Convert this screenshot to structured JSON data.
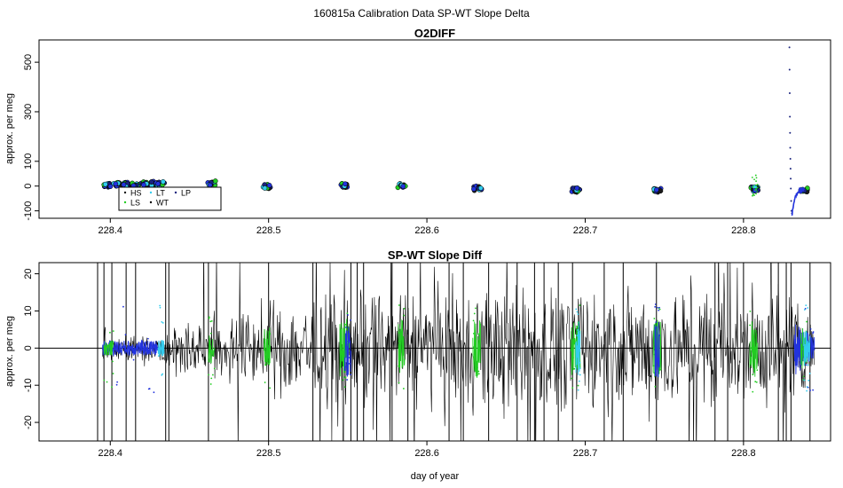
{
  "figure_title": "160815a   Calibration Data SP-WT Slope Delta",
  "colors": {
    "HS": "#1a1a1a",
    "LS": "#22cc22",
    "LT": "#33ccee",
    "WT": "#000000",
    "LP": "#1a237e",
    "blue": "#2233dd"
  },
  "chart_data": [
    {
      "type": "scatter",
      "title": "O2DIFF",
      "xlabel": "",
      "ylabel": "approx. per meg",
      "xlim": [
        228.355,
        228.855
      ],
      "ylim": [
        -130,
        590
      ],
      "xticks": [
        228.4,
        228.5,
        228.6,
        228.7,
        228.8
      ],
      "xtick_labels": [
        "228.4",
        "228.5",
        "228.6",
        "228.7",
        "228.8"
      ],
      "yticks": [
        -100,
        0,
        100,
        300,
        500
      ],
      "ytick_labels": [
        "-100",
        "0",
        "100",
        "300",
        "500"
      ],
      "grid": false,
      "legend": {
        "placement": "bottom-left",
        "entries": [
          {
            "label": "HS",
            "color": "#1a1a1a"
          },
          {
            "label": "LS",
            "color": "#22cc22"
          },
          {
            "label": "LT",
            "color": "#33ccee"
          },
          {
            "label": "WT",
            "color": "#000000"
          },
          {
            "label": "LP",
            "color": "#1a237e"
          }
        ]
      },
      "clusters": [
        {
          "x": 228.398,
          "y": 5
        },
        {
          "x": 228.404,
          "y": 7
        },
        {
          "x": 228.41,
          "y": 6
        },
        {
          "x": 228.416,
          "y": 7
        },
        {
          "x": 228.422,
          "y": 8
        },
        {
          "x": 228.428,
          "y": 10
        },
        {
          "x": 228.432,
          "y": 9
        },
        {
          "x": 228.464,
          "y": 12
        },
        {
          "x": 228.499,
          "y": -1
        },
        {
          "x": 228.548,
          "y": 2
        },
        {
          "x": 228.584,
          "y": 3
        },
        {
          "x": 228.632,
          "y": -9
        },
        {
          "x": 228.694,
          "y": -16
        },
        {
          "x": 228.746,
          "y": -17
        },
        {
          "x": 228.807,
          "y": -12
        },
        {
          "x": 228.838,
          "y": -15
        }
      ],
      "spike": {
        "x": 228.829,
        "points": [
          [
            228.829,
            560
          ],
          [
            228.8291,
            470
          ],
          [
            228.8292,
            375
          ],
          [
            228.8293,
            280
          ],
          [
            228.8294,
            215
          ],
          [
            228.8295,
            155
          ],
          [
            228.8296,
            110
          ],
          [
            228.8297,
            70
          ],
          [
            228.8298,
            30
          ],
          [
            228.8299,
            -10
          ],
          [
            228.8301,
            -60
          ],
          [
            228.8303,
            -100
          ],
          [
            228.8306,
            -110
          ]
        ]
      }
    },
    {
      "type": "line",
      "title": "SP-WT Slope Diff",
      "xlabel": "day of year",
      "ylabel": "approx. per meg",
      "xlim": [
        228.355,
        228.855
      ],
      "ylim": [
        -25,
        23
      ],
      "xticks": [
        228.4,
        228.5,
        228.6,
        228.7,
        228.8
      ],
      "xtick_labels": [
        "228.4",
        "228.5",
        "228.6",
        "228.7",
        "228.8"
      ],
      "yticks": [
        -20,
        -10,
        0,
        10,
        20
      ],
      "ytick_labels": [
        "-20",
        "-10",
        "0",
        "10",
        "20"
      ],
      "zero_line": true,
      "grid": false,
      "noise": {
        "x_start": 228.395,
        "x_end": 228.845,
        "step": 0.00035,
        "seed": 7,
        "amplitude_profile": [
          [
            228.395,
            3
          ],
          [
            228.43,
            3
          ],
          [
            228.44,
            5
          ],
          [
            228.47,
            6
          ],
          [
            228.5,
            8
          ],
          [
            228.53,
            11
          ],
          [
            228.56,
            12
          ],
          [
            228.6,
            11
          ],
          [
            228.65,
            12
          ],
          [
            228.7,
            11
          ],
          [
            228.75,
            12
          ],
          [
            228.8,
            11
          ],
          [
            228.83,
            12
          ],
          [
            228.845,
            4
          ]
        ]
      },
      "outlier_spikes": [
        228.392,
        228.396,
        228.401,
        228.41,
        228.416,
        228.435,
        228.437,
        228.462,
        228.5,
        228.528,
        228.552,
        228.556,
        228.56,
        228.578,
        228.588,
        228.614,
        228.623,
        228.639,
        228.657,
        228.668,
        228.674,
        228.683,
        228.692,
        228.712,
        228.724,
        228.745,
        228.782,
        228.79,
        228.8,
        228.822,
        228.827,
        228.83,
        228.842
      ],
      "colored_segments": [
        {
          "x_start": 228.395,
          "x_end": 228.43,
          "color": "blue"
        },
        {
          "x_start": 228.396,
          "x_end": 228.402,
          "color": "LS"
        },
        {
          "x_start": 228.43,
          "x_end": 228.434,
          "color": "LT"
        },
        {
          "x_start": 228.462,
          "x_end": 228.466,
          "color": "LS"
        },
        {
          "x_start": 228.497,
          "x_end": 228.501,
          "color": "LS"
        },
        {
          "x_start": 228.545,
          "x_end": 228.551,
          "color": "LS"
        },
        {
          "x_start": 228.548,
          "x_end": 228.552,
          "color": "blue"
        },
        {
          "x_start": 228.582,
          "x_end": 228.586,
          "color": "LS"
        },
        {
          "x_start": 228.629,
          "x_end": 228.634,
          "color": "LS"
        },
        {
          "x_start": 228.691,
          "x_end": 228.697,
          "color": "LS"
        },
        {
          "x_start": 228.694,
          "x_end": 228.697,
          "color": "LT"
        },
        {
          "x_start": 228.743,
          "x_end": 228.748,
          "color": "LS"
        },
        {
          "x_start": 228.744,
          "x_end": 228.747,
          "color": "blue"
        },
        {
          "x_start": 228.804,
          "x_end": 228.809,
          "color": "LS"
        },
        {
          "x_start": 228.832,
          "x_end": 228.845,
          "color": "blue"
        },
        {
          "x_start": 228.836,
          "x_end": 228.84,
          "color": "LS"
        },
        {
          "x_start": 228.838,
          "x_end": 228.842,
          "color": "LT"
        }
      ]
    }
  ]
}
